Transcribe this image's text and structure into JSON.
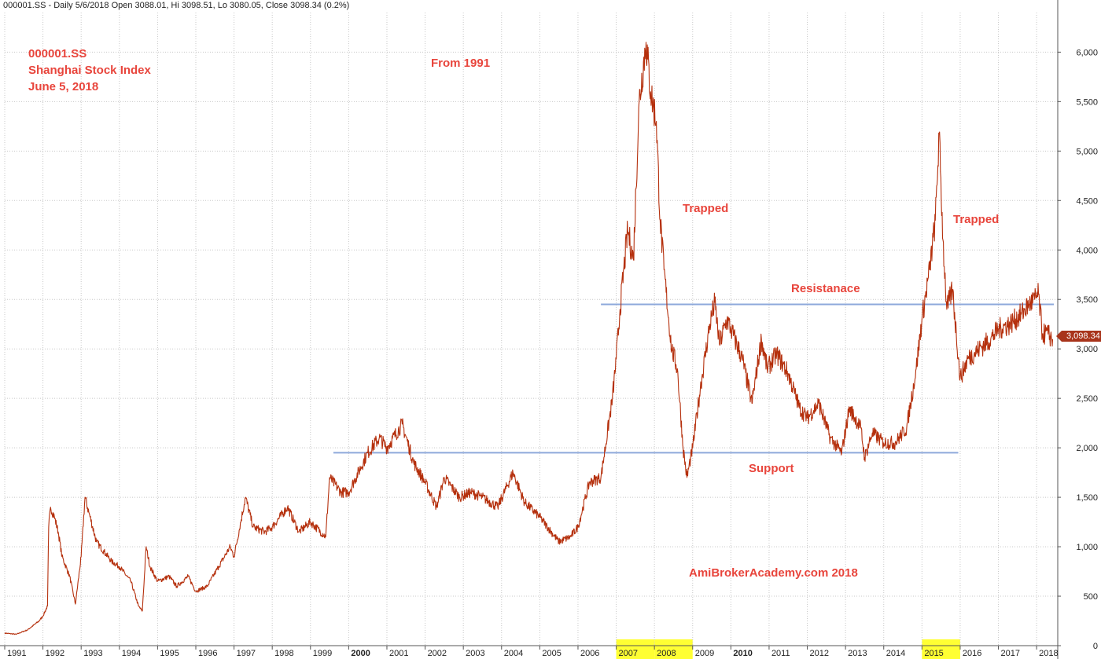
{
  "header": {
    "text": "000001.SS - Daily 5/6/2018 Open 3088.01, Hi 3098.51, Lo 3080.05, Close 3098.34 (0.2%)"
  },
  "chart_data": {
    "type": "line",
    "title_lines": [
      "000001.SS",
      "Shanghai Stock Index",
      "June 5, 2018"
    ],
    "xlabel": "",
    "ylabel": "",
    "ylim": [
      0,
      6400
    ],
    "y_ticks": [
      0,
      500,
      1000,
      1500,
      2000,
      2500,
      3000,
      3500,
      4000,
      4500,
      5000,
      5500,
      6000
    ],
    "y_tick_labels": [
      "0",
      "500",
      "1,000",
      "1,500",
      "2,000",
      "2,500",
      "3,000",
      "3,500",
      "4,000",
      "4,500",
      "5,000",
      "5,500",
      "6,000"
    ],
    "x_range": [
      1991.0,
      2018.45
    ],
    "x_ticks": [
      1991,
      1992,
      1993,
      1994,
      1995,
      1996,
      1997,
      1998,
      1999,
      2000,
      2001,
      2002,
      2003,
      2004,
      2005,
      2006,
      2007,
      2008,
      2009,
      2010,
      2011,
      2012,
      2013,
      2014,
      2015,
      2016,
      2017,
      2018
    ],
    "x_tick_labels": [
      "1991",
      "1992",
      "1993",
      "1994",
      "1995",
      "1996",
      "1997",
      "1998",
      "1999",
      "2000",
      "2001",
      "2002",
      "2003",
      "2004",
      "2005",
      "2006",
      "2007",
      "2008",
      "2009",
      "2010",
      "2011",
      "2012",
      "2013",
      "2014",
      "2015",
      "2016",
      "2017",
      "2018"
    ],
    "bold_x_ticks": [
      "2000",
      "2010"
    ],
    "highlighted_years": [
      "2007",
      "2008",
      "2015"
    ],
    "grid": true,
    "legend": "none",
    "line_color": "#b5300d",
    "level_color": "#8ea9db",
    "highlight_color": "#ffff33",
    "series": [
      {
        "points": [
          [
            1991.0,
            127
          ],
          [
            1991.3,
            115
          ],
          [
            1991.6,
            160
          ],
          [
            1991.9,
            250
          ],
          [
            1992.0,
            300
          ],
          [
            1992.12,
            400
          ],
          [
            1992.15,
            1200
          ],
          [
            1992.2,
            1400
          ],
          [
            1992.3,
            1300
          ],
          [
            1992.4,
            1150
          ],
          [
            1992.5,
            900
          ],
          [
            1992.7,
            700
          ],
          [
            1992.85,
            420
          ],
          [
            1993.0,
            900
          ],
          [
            1993.1,
            1500
          ],
          [
            1993.2,
            1350
          ],
          [
            1993.4,
            1050
          ],
          [
            1993.6,
            950
          ],
          [
            1993.8,
            850
          ],
          [
            1994.0,
            800
          ],
          [
            1994.3,
            650
          ],
          [
            1994.5,
            400
          ],
          [
            1994.6,
            350
          ],
          [
            1994.7,
            1000
          ],
          [
            1994.8,
            800
          ],
          [
            1995.0,
            650
          ],
          [
            1995.3,
            700
          ],
          [
            1995.5,
            600
          ],
          [
            1995.8,
            700
          ],
          [
            1996.0,
            550
          ],
          [
            1996.3,
            600
          ],
          [
            1996.6,
            800
          ],
          [
            1996.9,
            1000
          ],
          [
            1997.0,
            900
          ],
          [
            1997.3,
            1500
          ],
          [
            1997.5,
            1200
          ],
          [
            1997.8,
            1150
          ],
          [
            1998.0,
            1200
          ],
          [
            1998.4,
            1400
          ],
          [
            1998.7,
            1150
          ],
          [
            1999.0,
            1250
          ],
          [
            1999.4,
            1100
          ],
          [
            1999.5,
            1700
          ],
          [
            1999.8,
            1550
          ],
          [
            2000.0,
            1550
          ],
          [
            2000.5,
            1950
          ],
          [
            2000.8,
            2100
          ],
          [
            2001.0,
            2000
          ],
          [
            2001.4,
            2240
          ],
          [
            2001.7,
            1850
          ],
          [
            2002.0,
            1650
          ],
          [
            2002.3,
            1400
          ],
          [
            2002.5,
            1700
          ],
          [
            2002.9,
            1500
          ],
          [
            2003.2,
            1550
          ],
          [
            2003.5,
            1500
          ],
          [
            2003.9,
            1400
          ],
          [
            2004.3,
            1750
          ],
          [
            2004.6,
            1450
          ],
          [
            2005.0,
            1300
          ],
          [
            2005.5,
            1050
          ],
          [
            2005.8,
            1100
          ],
          [
            2006.0,
            1200
          ],
          [
            2006.3,
            1650
          ],
          [
            2006.6,
            1700
          ],
          [
            2006.9,
            2500
          ],
          [
            2007.0,
            2900
          ],
          [
            2007.1,
            3400
          ],
          [
            2007.3,
            4200
          ],
          [
            2007.45,
            3900
          ],
          [
            2007.6,
            5500
          ],
          [
            2007.78,
            6100
          ],
          [
            2007.9,
            5600
          ],
          [
            2008.05,
            5300
          ],
          [
            2008.15,
            4300
          ],
          [
            2008.25,
            3800
          ],
          [
            2008.45,
            3000
          ],
          [
            2008.6,
            2800
          ],
          [
            2008.75,
            2000
          ],
          [
            2008.85,
            1700
          ],
          [
            2009.0,
            2000
          ],
          [
            2009.2,
            2600
          ],
          [
            2009.45,
            3250
          ],
          [
            2009.58,
            3470
          ],
          [
            2009.7,
            3050
          ],
          [
            2009.9,
            3300
          ],
          [
            2010.0,
            3200
          ],
          [
            2010.3,
            2900
          ],
          [
            2010.55,
            2450
          ],
          [
            2010.8,
            3100
          ],
          [
            2010.95,
            2800
          ],
          [
            2011.2,
            2950
          ],
          [
            2011.5,
            2750
          ],
          [
            2011.8,
            2400
          ],
          [
            2012.0,
            2300
          ],
          [
            2012.3,
            2450
          ],
          [
            2012.6,
            2100
          ],
          [
            2012.9,
            1950
          ],
          [
            2013.1,
            2400
          ],
          [
            2013.4,
            2200
          ],
          [
            2013.5,
            1900
          ],
          [
            2013.7,
            2150
          ],
          [
            2014.0,
            2050
          ],
          [
            2014.3,
            2050
          ],
          [
            2014.6,
            2200
          ],
          [
            2014.85,
            2800
          ],
          [
            2015.0,
            3300
          ],
          [
            2015.2,
            3800
          ],
          [
            2015.35,
            4300
          ],
          [
            2015.45,
            5170
          ],
          [
            2015.55,
            4100
          ],
          [
            2015.65,
            3400
          ],
          [
            2015.8,
            3600
          ],
          [
            2016.0,
            2700
          ],
          [
            2016.2,
            2900
          ],
          [
            2016.5,
            3000
          ],
          [
            2016.8,
            3100
          ],
          [
            2017.0,
            3200
          ],
          [
            2017.3,
            3250
          ],
          [
            2017.6,
            3350
          ],
          [
            2017.8,
            3450
          ],
          [
            2017.95,
            3500
          ],
          [
            2018.05,
            3550
          ],
          [
            2018.15,
            3150
          ],
          [
            2018.3,
            3150
          ],
          [
            2018.42,
            3098
          ]
        ]
      }
    ],
    "levels": [
      {
        "name": "Resistanace",
        "y": 3450,
        "x_from": 2006.6,
        "x_to": 2018.45
      },
      {
        "name": "Support",
        "y": 1950,
        "x_from": 1999.6,
        "x_to": 2015.95
      }
    ],
    "annotations": [
      {
        "text": "From 1991"
      },
      {
        "text": "Trapped"
      },
      {
        "text": "Trapped"
      },
      {
        "text": "Resistanace"
      },
      {
        "text": "Support"
      },
      {
        "text": "AmiBrokerAcademy.com  2018"
      }
    ],
    "last_value_label": "3,098.34"
  }
}
